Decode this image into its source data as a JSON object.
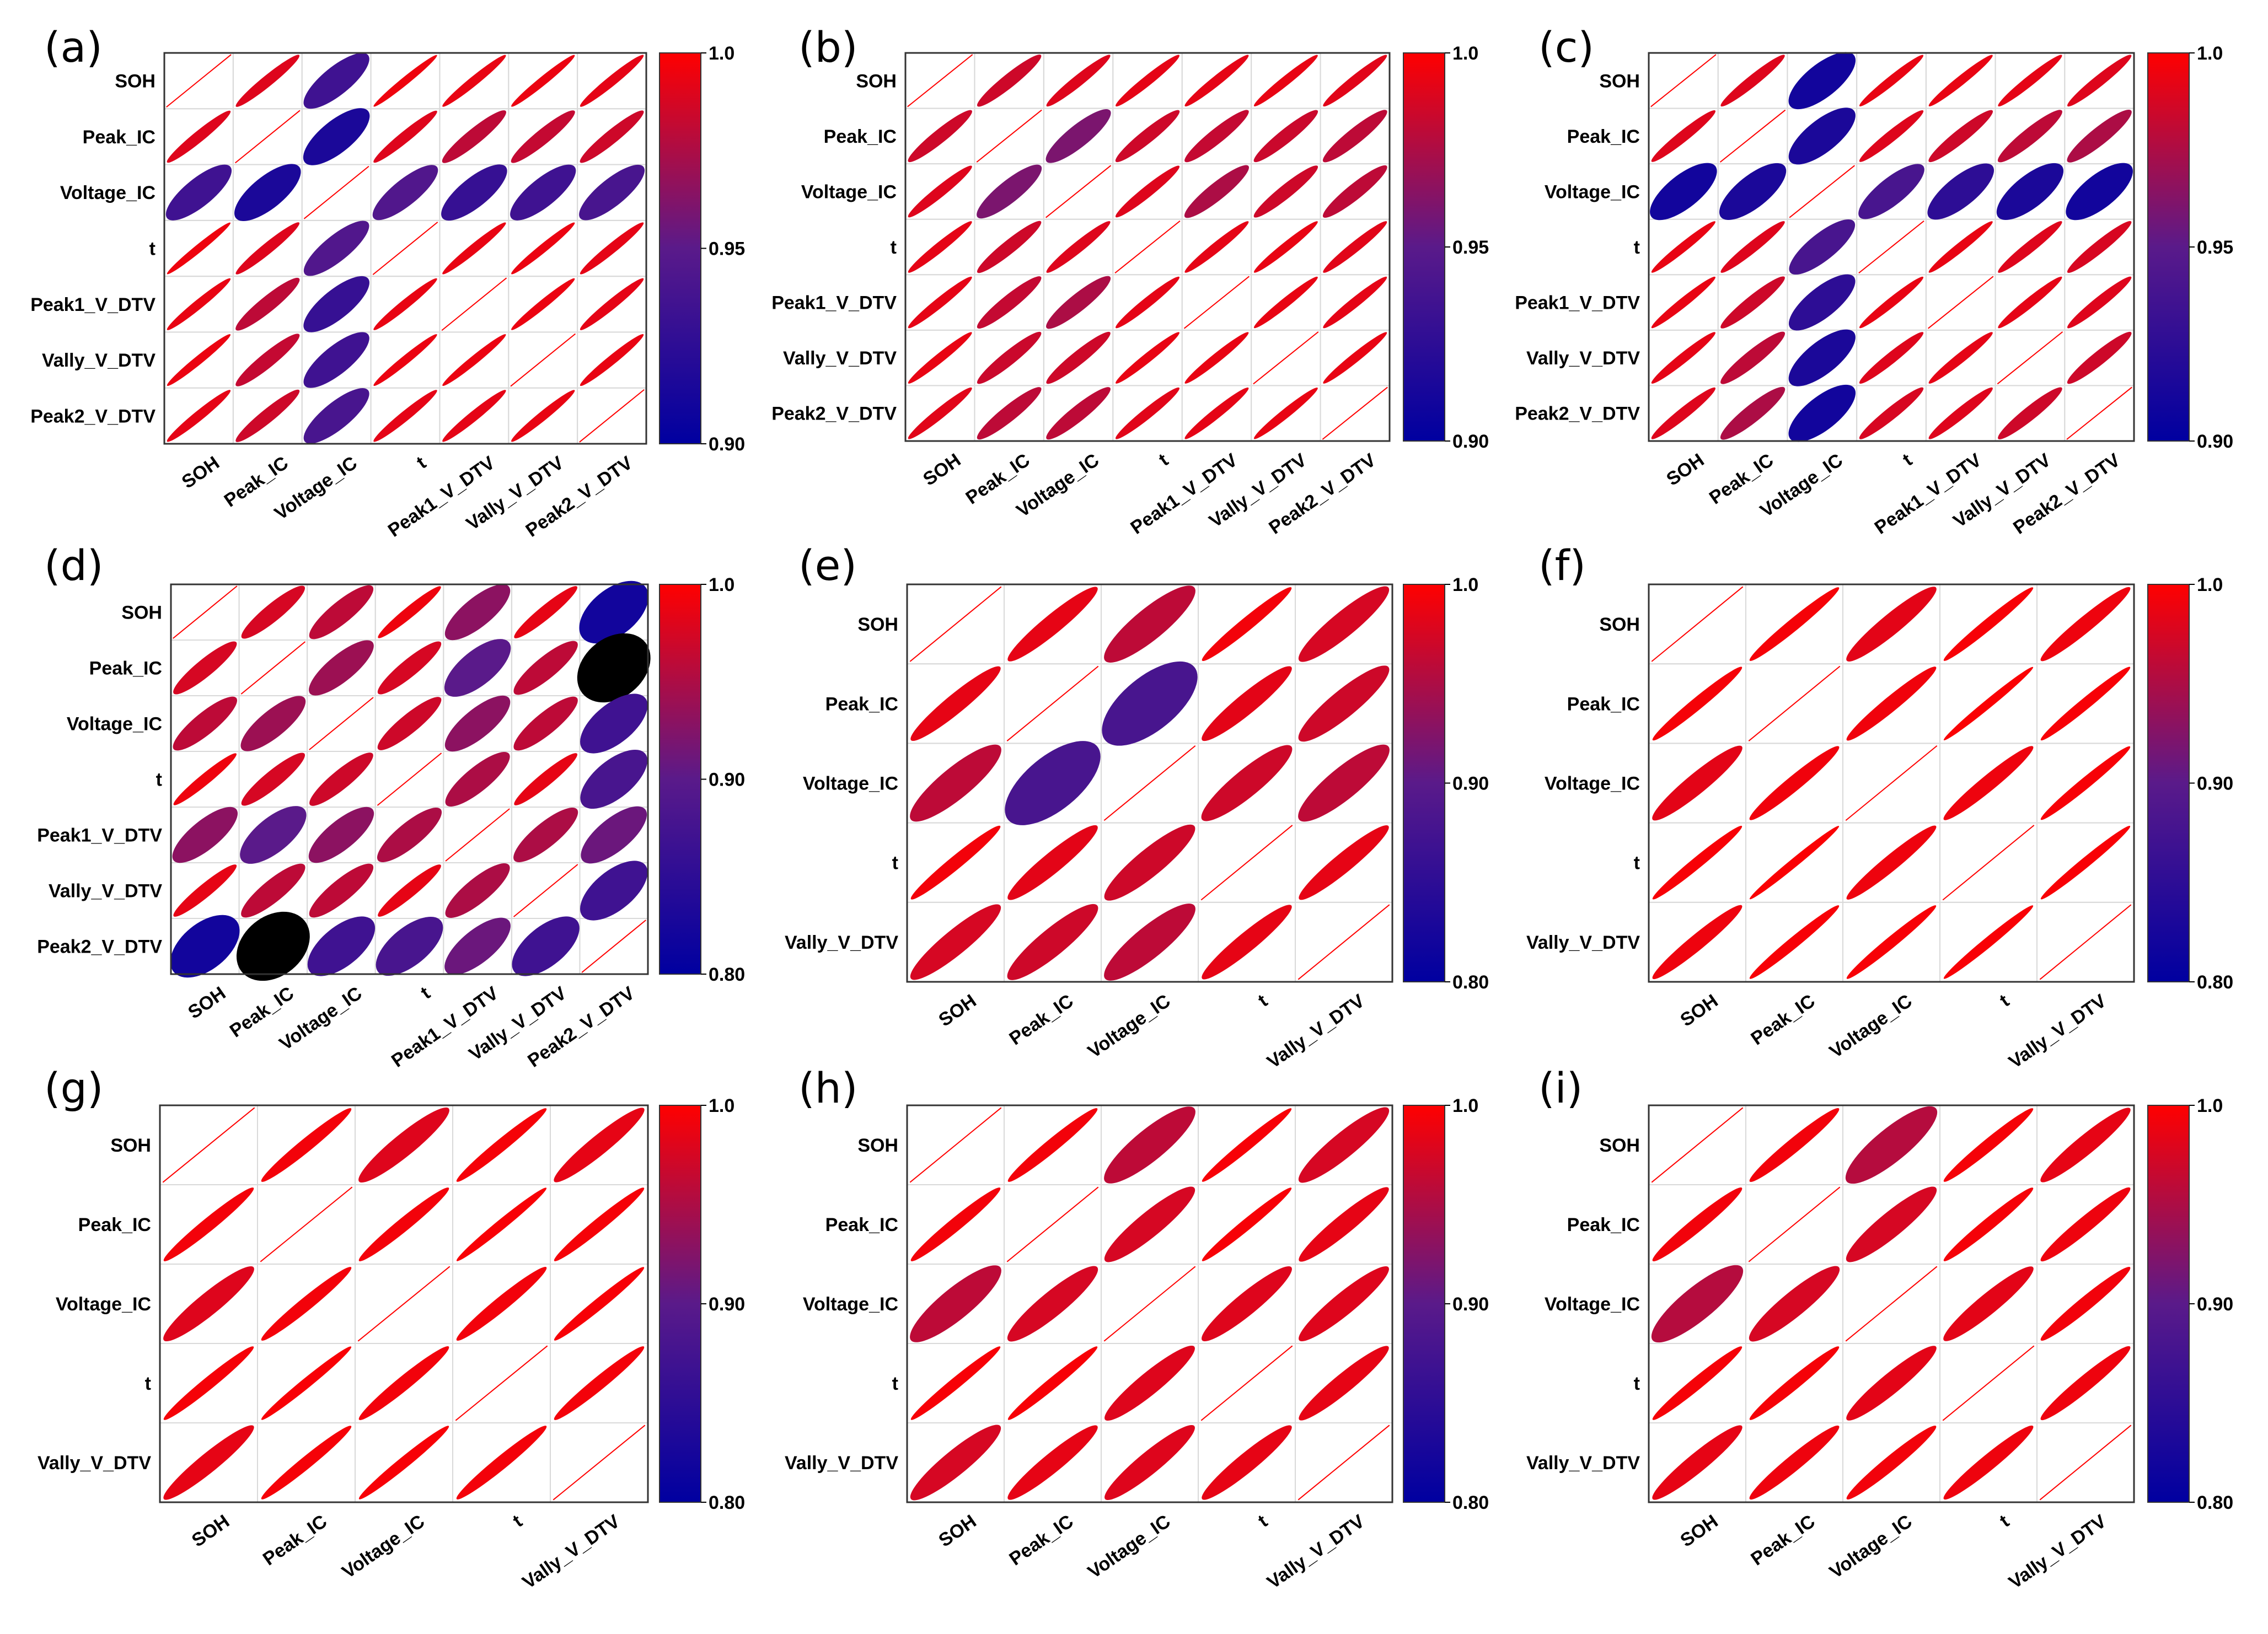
{
  "figure": {
    "colors": {
      "high": "#ff0000",
      "mid": "#5a1a8a",
      "low": "#0000a0",
      "frame": "#333333",
      "grid": "#d9d9d9"
    }
  },
  "chart_data": [
    {
      "type": "correlation-ellipse-matrix",
      "panel": "(a)",
      "variables": [
        "SOH",
        "Peak_IC",
        "Voltage_IC",
        "t",
        "Peak1_V_DTV",
        "Vally_V_DTV",
        "Peak2_V_DTV"
      ],
      "colorbar": {
        "min": 0.9,
        "max": 1.0,
        "ticks": [
          "1.0",
          "0.95",
          "0.90"
        ]
      },
      "matrix": [
        [
          1.0,
          0.99,
          0.935,
          0.995,
          0.993,
          0.994,
          0.992
        ],
        [
          0.99,
          1.0,
          0.915,
          0.99,
          0.98,
          0.982,
          0.985
        ],
        [
          0.935,
          0.915,
          1.0,
          0.945,
          0.93,
          0.935,
          0.94
        ],
        [
          0.995,
          0.99,
          0.945,
          1.0,
          0.993,
          0.994,
          0.992
        ],
        [
          0.993,
          0.98,
          0.93,
          0.993,
          1.0,
          0.994,
          0.992
        ],
        [
          0.994,
          0.982,
          0.935,
          0.994,
          0.994,
          1.0,
          0.993
        ],
        [
          0.992,
          0.985,
          0.94,
          0.992,
          0.992,
          0.993,
          1.0
        ]
      ]
    },
    {
      "type": "correlation-ellipse-matrix",
      "panel": "(b)",
      "variables": [
        "SOH",
        "Peak_IC",
        "Voltage_IC",
        "t",
        "Peak1_V_DTV",
        "Vally_V_DTV",
        "Peak2_V_DTV"
      ],
      "colorbar": {
        "min": 0.9,
        "max": 1.0,
        "ticks": [
          "1.0",
          "0.95",
          "0.90"
        ]
      },
      "matrix": [
        [
          1.0,
          0.985,
          0.99,
          0.992,
          0.992,
          0.993,
          0.991
        ],
        [
          0.985,
          1.0,
          0.96,
          0.985,
          0.982,
          0.984,
          0.98
        ],
        [
          0.99,
          0.96,
          1.0,
          0.99,
          0.975,
          0.985,
          0.98
        ],
        [
          0.992,
          0.985,
          0.99,
          1.0,
          0.992,
          0.993,
          0.991
        ],
        [
          0.992,
          0.982,
          0.975,
          0.992,
          1.0,
          0.993,
          0.992
        ],
        [
          0.993,
          0.984,
          0.985,
          0.993,
          0.993,
          1.0,
          0.993
        ],
        [
          0.991,
          0.98,
          0.98,
          0.991,
          0.992,
          0.993,
          1.0
        ]
      ]
    },
    {
      "type": "correlation-ellipse-matrix",
      "panel": "(c)",
      "variables": [
        "SOH",
        "Peak_IC",
        "Voltage_IC",
        "t",
        "Peak1_V_DTV",
        "Vally_V_DTV",
        "Peak2_V_DTV"
      ],
      "colorbar": {
        "min": 0.9,
        "max": 1.0,
        "ticks": [
          "1.0",
          "0.95",
          "0.90"
        ]
      },
      "matrix": [
        [
          1.0,
          0.99,
          0.91,
          0.993,
          0.993,
          0.992,
          0.99
        ],
        [
          0.99,
          1.0,
          0.915,
          0.99,
          0.985,
          0.98,
          0.975
        ],
        [
          0.91,
          0.915,
          1.0,
          0.94,
          0.925,
          0.915,
          0.91
        ],
        [
          0.993,
          0.99,
          0.94,
          1.0,
          0.993,
          0.99,
          0.988
        ],
        [
          0.993,
          0.985,
          0.925,
          0.993,
          1.0,
          0.992,
          0.99
        ],
        [
          0.992,
          0.98,
          0.915,
          0.99,
          0.992,
          1.0,
          0.985
        ],
        [
          0.99,
          0.975,
          0.91,
          0.988,
          0.99,
          0.985,
          1.0
        ]
      ]
    },
    {
      "type": "correlation-ellipse-matrix",
      "panel": "(d)",
      "variables": [
        "SOH",
        "Peak_IC",
        "Voltage_IC",
        "t",
        "Peak1_V_DTV",
        "Vally_V_DTV",
        "Peak2_V_DTV"
      ],
      "colorbar": {
        "min": 0.8,
        "max": 1.0,
        "ticks": [
          "1.0",
          "0.90",
          "0.80"
        ]
      },
      "matrix": [
        [
          1.0,
          0.975,
          0.96,
          0.99,
          0.93,
          0.985,
          0.82
        ],
        [
          0.975,
          1.0,
          0.94,
          0.975,
          0.9,
          0.96,
          0.7
        ],
        [
          0.96,
          0.94,
          1.0,
          0.97,
          0.93,
          0.96,
          0.87
        ],
        [
          0.99,
          0.975,
          0.97,
          1.0,
          0.95,
          0.985,
          0.88
        ],
        [
          0.93,
          0.9,
          0.93,
          0.95,
          1.0,
          0.95,
          0.91
        ],
        [
          0.985,
          0.96,
          0.96,
          0.985,
          0.95,
          1.0,
          0.87
        ],
        [
          0.82,
          0.7,
          0.87,
          0.88,
          0.91,
          0.87,
          1.0
        ]
      ]
    },
    {
      "type": "correlation-ellipse-matrix",
      "panel": "(e)",
      "variables": [
        "SOH",
        "Peak_IC",
        "Voltage_IC",
        "t",
        "Vally_V_DTV"
      ],
      "colorbar": {
        "min": 0.8,
        "max": 1.0,
        "ticks": [
          "1.0",
          "0.90",
          "0.80"
        ]
      },
      "matrix": [
        [
          1.0,
          0.985,
          0.96,
          0.993,
          0.975
        ],
        [
          0.985,
          1.0,
          0.88,
          0.983,
          0.97
        ],
        [
          0.96,
          0.88,
          1.0,
          0.97,
          0.96
        ],
        [
          0.993,
          0.983,
          0.97,
          1.0,
          0.985
        ],
        [
          0.975,
          0.97,
          0.96,
          0.985,
          1.0
        ]
      ]
    },
    {
      "type": "correlation-ellipse-matrix",
      "panel": "(f)",
      "variables": [
        "SOH",
        "Peak_IC",
        "Voltage_IC",
        "t",
        "Vally_V_DTV"
      ],
      "colorbar": {
        "min": 0.8,
        "max": 1.0,
        "ticks": [
          "1.0",
          "0.90",
          "0.80"
        ]
      },
      "matrix": [
        [
          1.0,
          0.994,
          0.983,
          0.995,
          0.99
        ],
        [
          0.994,
          1.0,
          0.991,
          0.997,
          0.995
        ],
        [
          0.983,
          0.991,
          1.0,
          0.99,
          0.995
        ],
        [
          0.995,
          0.997,
          0.99,
          1.0,
          0.996
        ],
        [
          0.99,
          0.995,
          0.995,
          0.996,
          1.0
        ]
      ]
    },
    {
      "type": "correlation-ellipse-matrix",
      "panel": "(g)",
      "variables": [
        "SOH",
        "Peak_IC",
        "Voltage_IC",
        "t",
        "Vally_V_DTV"
      ],
      "colorbar": {
        "min": 0.8,
        "max": 1.0,
        "ticks": [
          "1.0",
          "0.90",
          "0.80"
        ]
      },
      "matrix": [
        [
          1.0,
          0.993,
          0.98,
          0.994,
          0.985
        ],
        [
          0.993,
          1.0,
          0.993,
          0.996,
          0.994
        ],
        [
          0.98,
          0.993,
          1.0,
          0.992,
          0.995
        ],
        [
          0.994,
          0.996,
          0.992,
          1.0,
          0.993
        ],
        [
          0.985,
          0.994,
          0.995,
          0.993,
          1.0
        ]
      ]
    },
    {
      "type": "correlation-ellipse-matrix",
      "panel": "(h)",
      "variables": [
        "SOH",
        "Peak_IC",
        "Voltage_IC",
        "t",
        "Vally_V_DTV"
      ],
      "colorbar": {
        "min": 0.8,
        "max": 1.0,
        "ticks": [
          "1.0",
          "0.90",
          "0.80"
        ]
      },
      "matrix": [
        [
          1.0,
          0.993,
          0.96,
          0.995,
          0.975
        ],
        [
          0.993,
          1.0,
          0.975,
          0.995,
          0.985
        ],
        [
          0.96,
          0.975,
          1.0,
          0.98,
          0.98
        ],
        [
          0.995,
          0.995,
          0.98,
          1.0,
          0.985
        ],
        [
          0.975,
          0.985,
          0.98,
          0.985,
          1.0
        ]
      ]
    },
    {
      "type": "correlation-ellipse-matrix",
      "panel": "(i)",
      "variables": [
        "SOH",
        "Peak_IC",
        "Voltage_IC",
        "t",
        "Vally_V_DTV"
      ],
      "colorbar": {
        "min": 0.8,
        "max": 1.0,
        "ticks": [
          "1.0",
          "0.90",
          "0.80"
        ]
      },
      "matrix": [
        [
          1.0,
          0.992,
          0.955,
          0.994,
          0.985
        ],
        [
          0.992,
          1.0,
          0.975,
          0.994,
          0.99
        ],
        [
          0.955,
          0.975,
          1.0,
          0.983,
          0.992
        ],
        [
          0.994,
          0.994,
          0.983,
          1.0,
          0.99
        ],
        [
          0.985,
          0.99,
          0.992,
          0.99,
          1.0
        ]
      ]
    }
  ]
}
